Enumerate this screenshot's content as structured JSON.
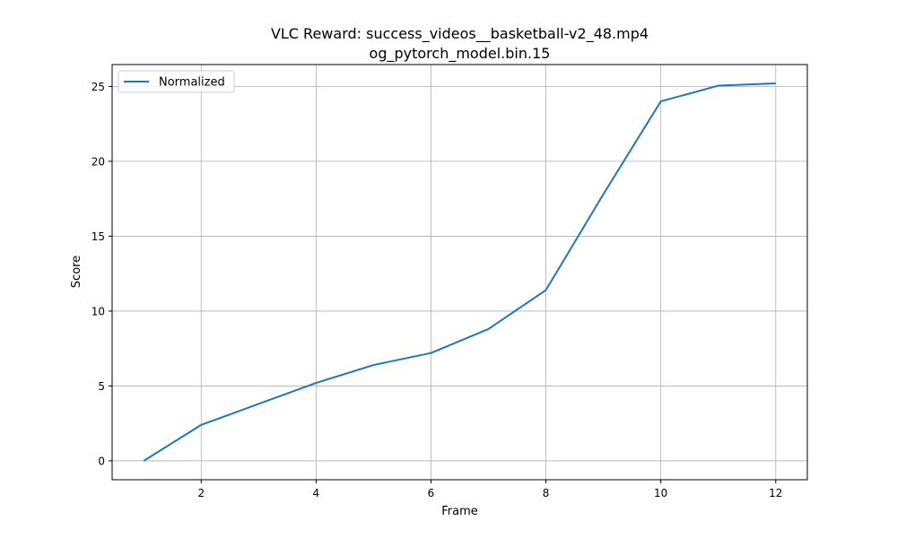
{
  "chart_data": {
    "type": "line",
    "title": "VLC Reward: success_videos__basketball-v2_48.mp4",
    "subtitle": "og_pytorch_model.bin.15",
    "xlabel": "Frame",
    "ylabel": "Score",
    "xlim": [
      0.45,
      12.55
    ],
    "ylim": [
      -1.26,
      26.46
    ],
    "xticks": [
      2,
      4,
      6,
      8,
      10,
      12
    ],
    "yticks": [
      0,
      5,
      10,
      15,
      20,
      25
    ],
    "grid": true,
    "legend_position": "upper-left",
    "series": [
      {
        "name": "Normalized",
        "color": "#1f77b4",
        "x": [
          1,
          2,
          3,
          4,
          5,
          6,
          7,
          8,
          9,
          10,
          11,
          12
        ],
        "y": [
          0,
          2.4,
          3.8,
          5.2,
          6.4,
          7.2,
          8.8,
          11.4,
          17.8,
          24.0,
          25.05,
          25.2
        ]
      }
    ]
  }
}
